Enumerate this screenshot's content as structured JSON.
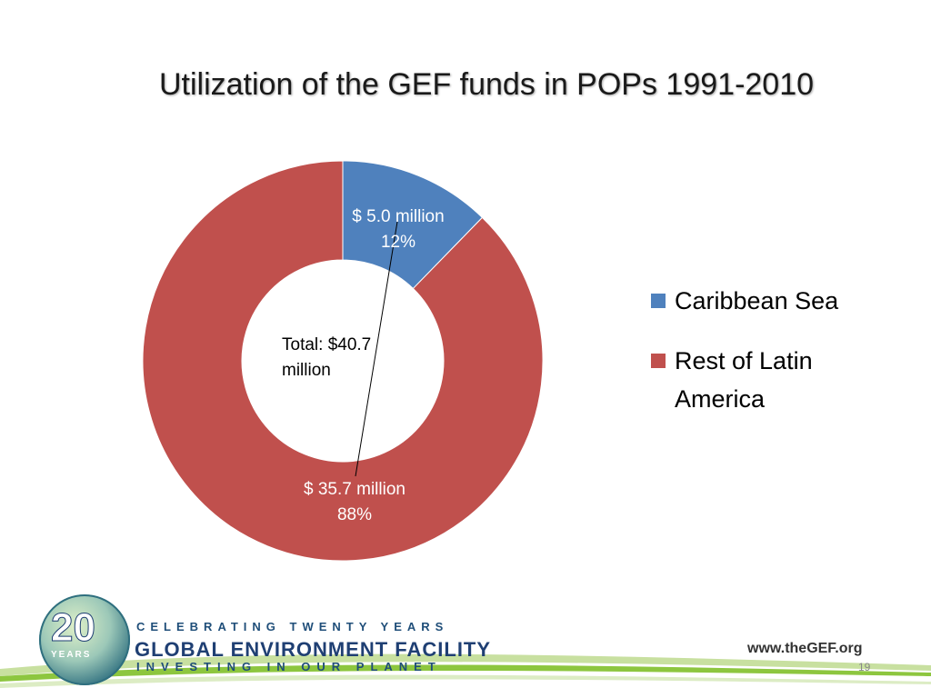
{
  "slide": {
    "title": "Utilization of the GEF funds in POPs 1991-2010",
    "center_label": "Total: $40.7 million",
    "page_number": "19"
  },
  "chart_data": {
    "type": "pie",
    "style": "doughnut",
    "categories": [
      "Caribbean Sea",
      "Rest of Latin America"
    ],
    "values": [
      5.0,
      35.7
    ],
    "percent_labels": [
      "12%",
      "88%"
    ],
    "value_labels": [
      "$ 5.0 million",
      "$ 35.7 million"
    ],
    "colors": [
      "#4f81bd",
      "#c0504d"
    ],
    "legend_position": "right"
  },
  "footer": {
    "logo_numeral": "20",
    "logo_years": "YEARS",
    "tagline_top": "CELEBRATING TWENTY YEARS",
    "org_name": "GLOBAL ENVIRONMENT FACILITY",
    "tagline_bottom": "INVESTING IN OUR PLANET",
    "url": "www.theGEF.org",
    "colors": {
      "navy": "#1f3f73",
      "green": "#8dc63f"
    }
  }
}
